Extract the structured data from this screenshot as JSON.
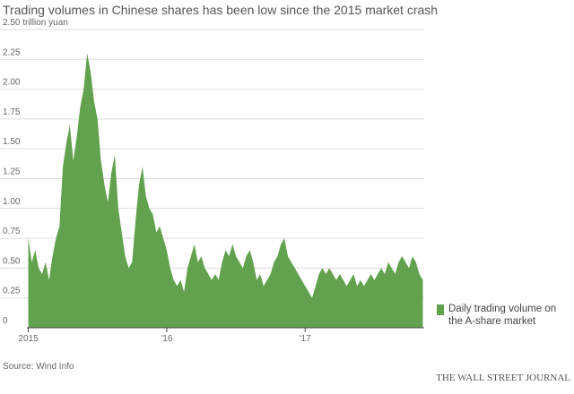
{
  "chart_data": {
    "type": "area",
    "title": "Trading volumes in Chinese shares has been low since the 2015 market crash",
    "source": "Source: Wind Info",
    "publisher": "THE WALL STREET JOURNAL",
    "xlim": [
      2014.99,
      2017.86
    ],
    "xticks": [
      {
        "value": 2015,
        "label": "2015"
      },
      {
        "value": 2016,
        "label": "'16"
      },
      {
        "value": 2017,
        "label": "'17"
      }
    ],
    "ylim": [
      0,
      2.5
    ],
    "yticks": [
      0,
      0.25,
      {
        "value": 0.5,
        "label": "0.50"
      },
      0.75,
      {
        "value": 1,
        "label": "1.00"
      },
      1.25,
      {
        "value": 1.5,
        "label": "1.50"
      },
      1.75,
      {
        "value": 2,
        "label": "2.00"
      },
      2.25,
      {
        "value": 2.5,
        "label": "2.50 trillion yuan"
      }
    ],
    "grid": true,
    "legend": "right",
    "x": [
      2015.0,
      2015.025,
      2015.05,
      2015.075,
      2015.1,
      2015.125,
      2015.15,
      2015.175,
      2015.2,
      2015.225,
      2015.25,
      2015.275,
      2015.3,
      2015.325,
      2015.35,
      2015.375,
      2015.4,
      2015.425,
      2015.45,
      2015.475,
      2015.5,
      2015.525,
      2015.55,
      2015.575,
      2015.6,
      2015.625,
      2015.65,
      2015.675,
      2015.7,
      2015.725,
      2015.75,
      2015.775,
      2015.8,
      2015.825,
      2015.85,
      2015.875,
      2015.9,
      2015.925,
      2015.95,
      2015.975,
      2016.0,
      2016.025,
      2016.05,
      2016.075,
      2016.1,
      2016.125,
      2016.15,
      2016.175,
      2016.2,
      2016.225,
      2016.25,
      2016.275,
      2016.3,
      2016.325,
      2016.35,
      2016.375,
      2016.4,
      2016.425,
      2016.45,
      2016.475,
      2016.5,
      2016.525,
      2016.55,
      2016.575,
      2016.6,
      2016.625,
      2016.65,
      2016.675,
      2016.7,
      2016.725,
      2016.75,
      2016.775,
      2016.8,
      2016.825,
      2016.85,
      2016.875,
      2016.9,
      2016.925,
      2016.95,
      2016.975,
      2017.0,
      2017.025,
      2017.05,
      2017.075,
      2017.1,
      2017.125,
      2017.15,
      2017.175,
      2017.2,
      2017.225,
      2017.25,
      2017.275,
      2017.3,
      2017.325,
      2017.35,
      2017.375,
      2017.4,
      2017.425,
      2017.45,
      2017.475,
      2017.5,
      2017.525,
      2017.55,
      2017.575,
      2017.6,
      2017.625,
      2017.65,
      2017.675,
      2017.7,
      2017.725,
      2017.75,
      2017.775,
      2017.8,
      2017.825,
      2017.85
    ],
    "series": [
      {
        "name": "Daily trading volume on the A-share market",
        "color": "#62a24e",
        "values": [
          0.75,
          0.55,
          0.65,
          0.5,
          0.45,
          0.55,
          0.4,
          0.6,
          0.75,
          0.85,
          1.35,
          1.55,
          1.7,
          1.4,
          1.6,
          1.85,
          2.0,
          2.3,
          2.15,
          1.9,
          1.75,
          1.4,
          1.2,
          1.05,
          1.3,
          1.45,
          1.0,
          0.8,
          0.6,
          0.5,
          0.55,
          0.9,
          1.2,
          1.35,
          1.1,
          1.0,
          0.95,
          0.8,
          0.85,
          0.75,
          0.65,
          0.5,
          0.4,
          0.35,
          0.4,
          0.3,
          0.5,
          0.6,
          0.7,
          0.55,
          0.6,
          0.5,
          0.45,
          0.4,
          0.45,
          0.4,
          0.55,
          0.65,
          0.6,
          0.7,
          0.6,
          0.55,
          0.5,
          0.6,
          0.65,
          0.55,
          0.4,
          0.45,
          0.35,
          0.4,
          0.45,
          0.55,
          0.6,
          0.7,
          0.75,
          0.6,
          0.55,
          0.5,
          0.45,
          0.4,
          0.35,
          0.3,
          0.25,
          0.35,
          0.45,
          0.5,
          0.45,
          0.5,
          0.45,
          0.4,
          0.45,
          0.4,
          0.35,
          0.4,
          0.45,
          0.35,
          0.4,
          0.35,
          0.4,
          0.45,
          0.4,
          0.45,
          0.5,
          0.45,
          0.55,
          0.5,
          0.45,
          0.55,
          0.6,
          0.55,
          0.5,
          0.6,
          0.55,
          0.45,
          0.4
        ]
      }
    ]
  }
}
